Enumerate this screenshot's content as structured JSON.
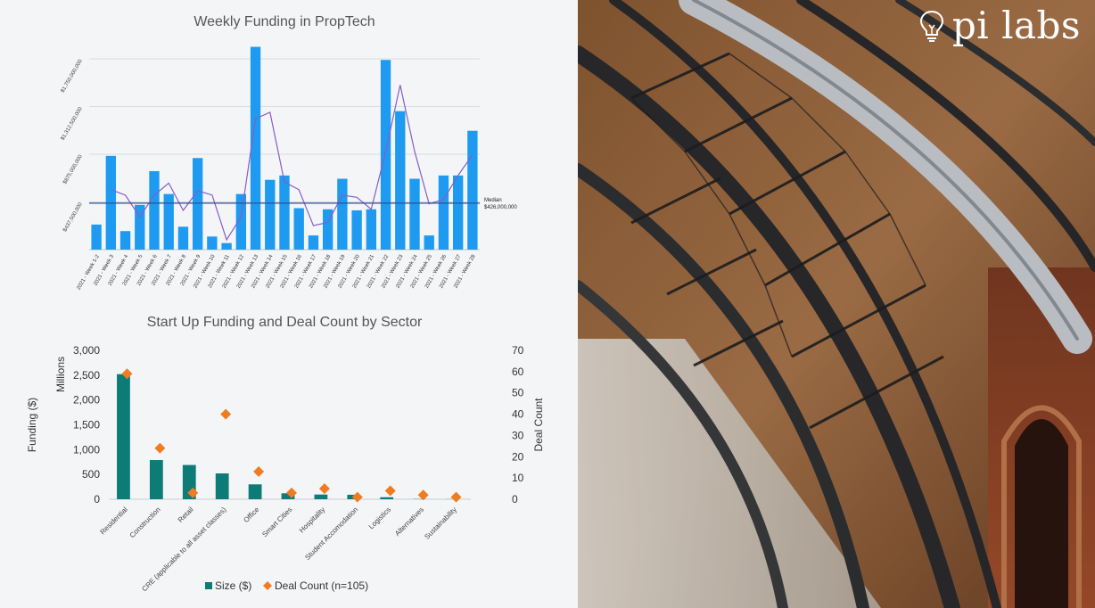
{
  "brand": {
    "name": "pi labs",
    "logo_icon": "lightbulb-icon"
  },
  "chart_data": [
    {
      "type": "bar",
      "title": "Weekly Funding in PropTech",
      "categories": [
        "2021 - Week 1-2",
        "2021 - Week 3",
        "2021 - Week 4",
        "2021 - Week 5",
        "2021 - Week 6",
        "2021 - Week 7",
        "2021 - Week 8",
        "2021 - Week 9",
        "2021 - Week 10",
        "2021 - Week 11",
        "2021 - Week 12",
        "2021 - Week 13",
        "2021 - Week 14",
        "2021 - Week 15",
        "2021 - Week 16",
        "2021 - Week 17",
        "2021 - Week 18",
        "2021 - Week 19",
        "2021 - Week 20",
        "2021 - Week 21",
        "2021 - Week 22",
        "2021 - Week 23",
        "2021 - Week 24",
        "2021 - Week 25",
        "2021 - Week 26",
        "2021 - Week 27",
        "2021 - Week 28"
      ],
      "series": [
        {
          "type": "bar",
          "color": "#1e9bf0",
          "values": [
            230000000,
            860000000,
            170000000,
            410000000,
            720000000,
            510000000,
            210000000,
            840000000,
            120000000,
            60000000,
            510000000,
            1860000000,
            640000000,
            680000000,
            380000000,
            130000000,
            370000000,
            650000000,
            360000000,
            370000000,
            1740000000,
            1270000000,
            650000000,
            130000000,
            680000000,
            680000000,
            1090000000
          ]
        },
        {
          "type": "line",
          "color": "#8a5cc6",
          "values": [
            null,
            550000000,
            500000000,
            300000000,
            500000000,
            610000000,
            360000000,
            540000000,
            500000000,
            90000000,
            300000000,
            1200000000,
            1260000000,
            620000000,
            550000000,
            220000000,
            250000000,
            500000000,
            480000000,
            370000000,
            900000000,
            1510000000,
            900000000,
            420000000,
            460000000,
            680000000,
            870000000
          ]
        }
      ],
      "yticks": [
        "$437,500,000",
        "$875,000,000",
        "$1,312,500,000",
        "$1,750,000,000"
      ],
      "ylim": [
        0,
        1750000000
      ],
      "reference_line": {
        "label": "Median",
        "value_label": "$426,000,000",
        "value": 426000000,
        "color": "#2f4f8f"
      },
      "gridlines": true
    },
    {
      "type": "bar",
      "title": "Start Up Funding and Deal Count by Sector",
      "categories": [
        "Residential",
        "Construction",
        "Retail",
        "CRE (applicable to all asset classes)",
        "Office",
        "Smart Cities",
        "Hospitality",
        "Student Accomodation",
        "Logistics",
        "Alternatives",
        "Sustainability"
      ],
      "series": [
        {
          "name": "Size ($)",
          "type": "bar",
          "axis": "left",
          "color": "#0d7b76",
          "values": [
            2520,
            790,
            690,
            520,
            300,
            120,
            95,
            90,
            40,
            5,
            3
          ]
        },
        {
          "name": "Deal Count (n=105)",
          "type": "scatter",
          "axis": "right",
          "color": "#f07c22",
          "values": [
            59,
            24,
            3,
            40,
            13,
            3,
            5,
            1,
            4,
            2,
            1
          ]
        }
      ],
      "ylabel": "Funding ($)",
      "ylabel_units": "Millions",
      "y2label": "Deal Count",
      "ylim": [
        0,
        3000
      ],
      "y2lim": [
        0,
        70
      ],
      "yticks": [
        "0",
        "500",
        "1,000",
        "1,500",
        "2,000",
        "2,500",
        "3,000"
      ],
      "y2ticks": [
        "0",
        "10",
        "20",
        "30",
        "40",
        "50",
        "60",
        "70"
      ],
      "legend": {
        "position": "bottom"
      }
    }
  ]
}
